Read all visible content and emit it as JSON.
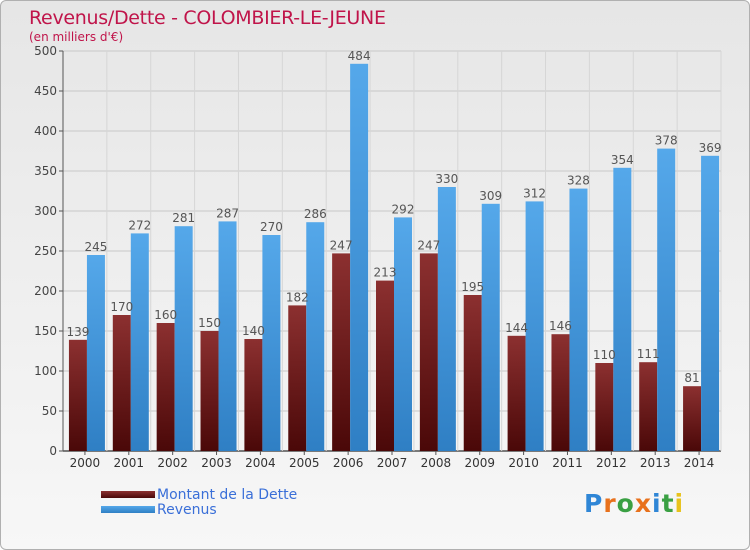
{
  "title": "Revenus/Dette - COLOMBIER-LE-JEUNE",
  "subtitle": "(en milliers d'€)",
  "colors": {
    "dette": "#7a2828",
    "dette_dark": "#4a0c0c",
    "revenus": "#4fa3e6",
    "revenus_dark": "#2f7fc4",
    "title": "#c0144a",
    "legend_text": "#3a6fd8"
  },
  "legend": [
    {
      "label": "Montant de la Dette",
      "color": "#7a2020"
    },
    {
      "label": "Revenus",
      "color": "#4fa3e6"
    }
  ],
  "logo": {
    "letters": [
      "P",
      "r",
      "o",
      "x",
      "i",
      "t",
      "i"
    ],
    "colors": [
      "#2f86d6",
      "#e8711c",
      "#3aa043",
      "#e8711c",
      "#2f86d6",
      "#3aa043",
      "#e8c21c"
    ]
  },
  "chart_data": {
    "type": "bar",
    "title": "Revenus/Dette - COLOMBIER-LE-JEUNE",
    "ylabel": "(en milliers d'€)",
    "categories": [
      "2000",
      "2001",
      "2002",
      "2003",
      "2004",
      "2005",
      "2006",
      "2007",
      "2008",
      "2009",
      "2010",
      "2011",
      "2012",
      "2013",
      "2014"
    ],
    "series": [
      {
        "name": "Montant de la Dette",
        "values": [
          139,
          170,
          160,
          150,
          140,
          182,
          247,
          213,
          247,
          195,
          144,
          146,
          110,
          111,
          81
        ]
      },
      {
        "name": "Revenus",
        "values": [
          245,
          272,
          281,
          287,
          270,
          286,
          484,
          292,
          330,
          309,
          312,
          328,
          354,
          378,
          369
        ]
      }
    ],
    "ylim": [
      0,
      500
    ],
    "yticks": [
      0,
      50,
      100,
      150,
      200,
      250,
      300,
      350,
      400,
      450,
      500
    ],
    "grid": true,
    "legend_position": "bottom-left"
  }
}
